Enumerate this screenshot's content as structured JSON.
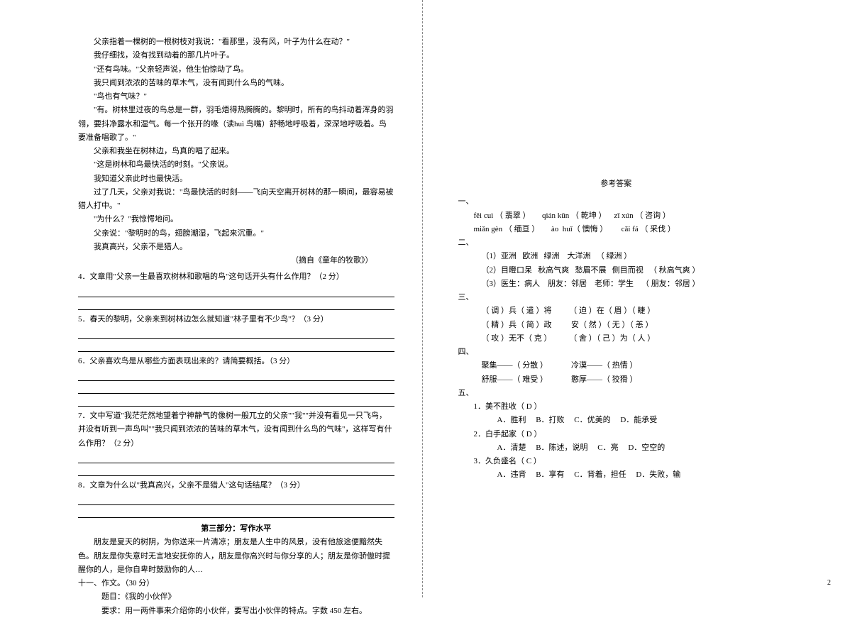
{
  "left": {
    "p1": "父亲指着一棵树的一根树枝对我说：\"看那里，没有风，叶子为什么在动？\"",
    "p2": "我仔细找，没有找到动着的那几片叶子。",
    "p3": "\"还有鸟味。\"父亲轻声说，他生怕惊动了鸟。",
    "p4": "我只闻到浓浓的苦味的草木气，没有闻到什么鸟的气味。",
    "p5": "\"鸟也有气味？\"",
    "p6": "\"有。树林里过夜的鸟总是一群，羽毛焐得热腾腾的。黎明时，所有的鸟抖动着浑身的羽翎，要抖净露水和湿气。每一个张开的喙（读huì 鸟嘴）舒畅地呼吸着，深深地呼吸着。鸟要准备唱歌了。\"",
    "p7": "父亲和我坐在树林边，鸟真的唱了起来。",
    "p8": "\"这是树林和鸟最快活的时刻。\"父亲说。",
    "p9": "我知道父亲此时也最快活。",
    "p10": "过了几天，父亲对我说：\"鸟最快活的时刻——飞向天空离开树林的那一瞬间，最容易被猎人打中。\"",
    "p11": "\"为什么？\"我惊愕地问。",
    "p12": "父亲说：\"黎明时的鸟，翅膀潮湿，飞起来沉重。\"",
    "p13": "我真高兴，父亲不是猎人。",
    "source": "（摘自《童年的牧歌》）",
    "q4": "4．文章用\"父亲一生最喜欢树林和歌唱的鸟\"这句话开头有什么作用？（2 分）",
    "q5": "5．春天的黎明，父亲来到树林边怎么就知道\"林子里有不少鸟\"？（3 分）",
    "q6": "6．父亲喜欢鸟是从哪些方面表现出来的？请简要概括。（3 分）",
    "q7": "7．文中写道\"我茫茫然地望着宁神静气的像树一般兀立的父亲\"\"我\"\"并没有看见一只飞鸟，并没有听到一声鸟叫\"\"我只闻到浓浓的苦味的草木气，没有闻到什么鸟的气味\"，这样写有什么作用？（2 分）",
    "q8": "8．文章为什么以\"我真高兴，父亲不是猎人\"这句话结尾？（3 分）",
    "sect3": "第三部分：写作水平",
    "essay1": "朋友是夏天的树阴，为你送来一片清凉；朋友是人生中的风景，没有他旅途便黯然失色。朋友是你失意时无言地安抚你的人，朋友是你高兴时与你分享的人；朋友是你骄傲时提醒你的人，是你自卑时鼓励你的人…",
    "eleven": "十一、作文。（30 分）",
    "topic": "题目：《我的小伙伴》",
    "req": "要求：用一两件事来介绍你的小伙伴，要写出小伙伴的特点。字数 450 左右。"
  },
  "right": {
    "title": "参考答案",
    "s1": "一、",
    "r1a": "fěi cuì （ 翡翠 ）      qián kūn （ 乾坤 ）    zī xún （ 咨询 ）",
    "r1b": "miǎn gèn （ 缅亘 ）      ào  huǐ（ 懊悔 ）       cǎi fá （ 采伐 ）",
    "s2": "二、",
    "r2a": "（1）亚洲   欧洲   绿洲    大洋洲   （ 绿洲 ）",
    "r2b": "（2）目瞪口呆   秋高气爽   愁眉不展   侧目而视   （ 秋高气爽 ）",
    "r2c": "（3）医生：病人    朋友：邻居    老师：学生    （ 朋友：邻居 ）",
    "s3": "三、",
    "r3a": "（ 调 ）兵（ 遣 ）将         （ 迫 ）在（ 眉 ）（ 睫 ）",
    "r3b": "（ 精 ）兵（ 简 ）政          安（ 然 ）（ 无 ）（ 恙 ）",
    "r3c": "（ 攻 ）无不（ 克 ）         （ 舍 ）（ 己 ）为（ 人 ）",
    "s4": "四、",
    "r4a": "聚集——（ 分散 ）            冷漠——（ 热情 ）",
    "r4b": "舒服——（ 难受 ）            憨厚——（ 狡猾 ）",
    "s5": "五、",
    "q51": "1．美不胜收（ D ）",
    "q51o": "A．胜利     B．打败     C．优美的     D．能承受",
    "q52": "2．白手起家（ D ）",
    "q52o": "A．清楚     B．陈述，说明     C．亮     D．空空的",
    "q53": "3．久负盛名（ C ）",
    "q53o": "A．违背     B．享有     C．背着，担任     D．失败，输"
  },
  "pageNum": "2"
}
